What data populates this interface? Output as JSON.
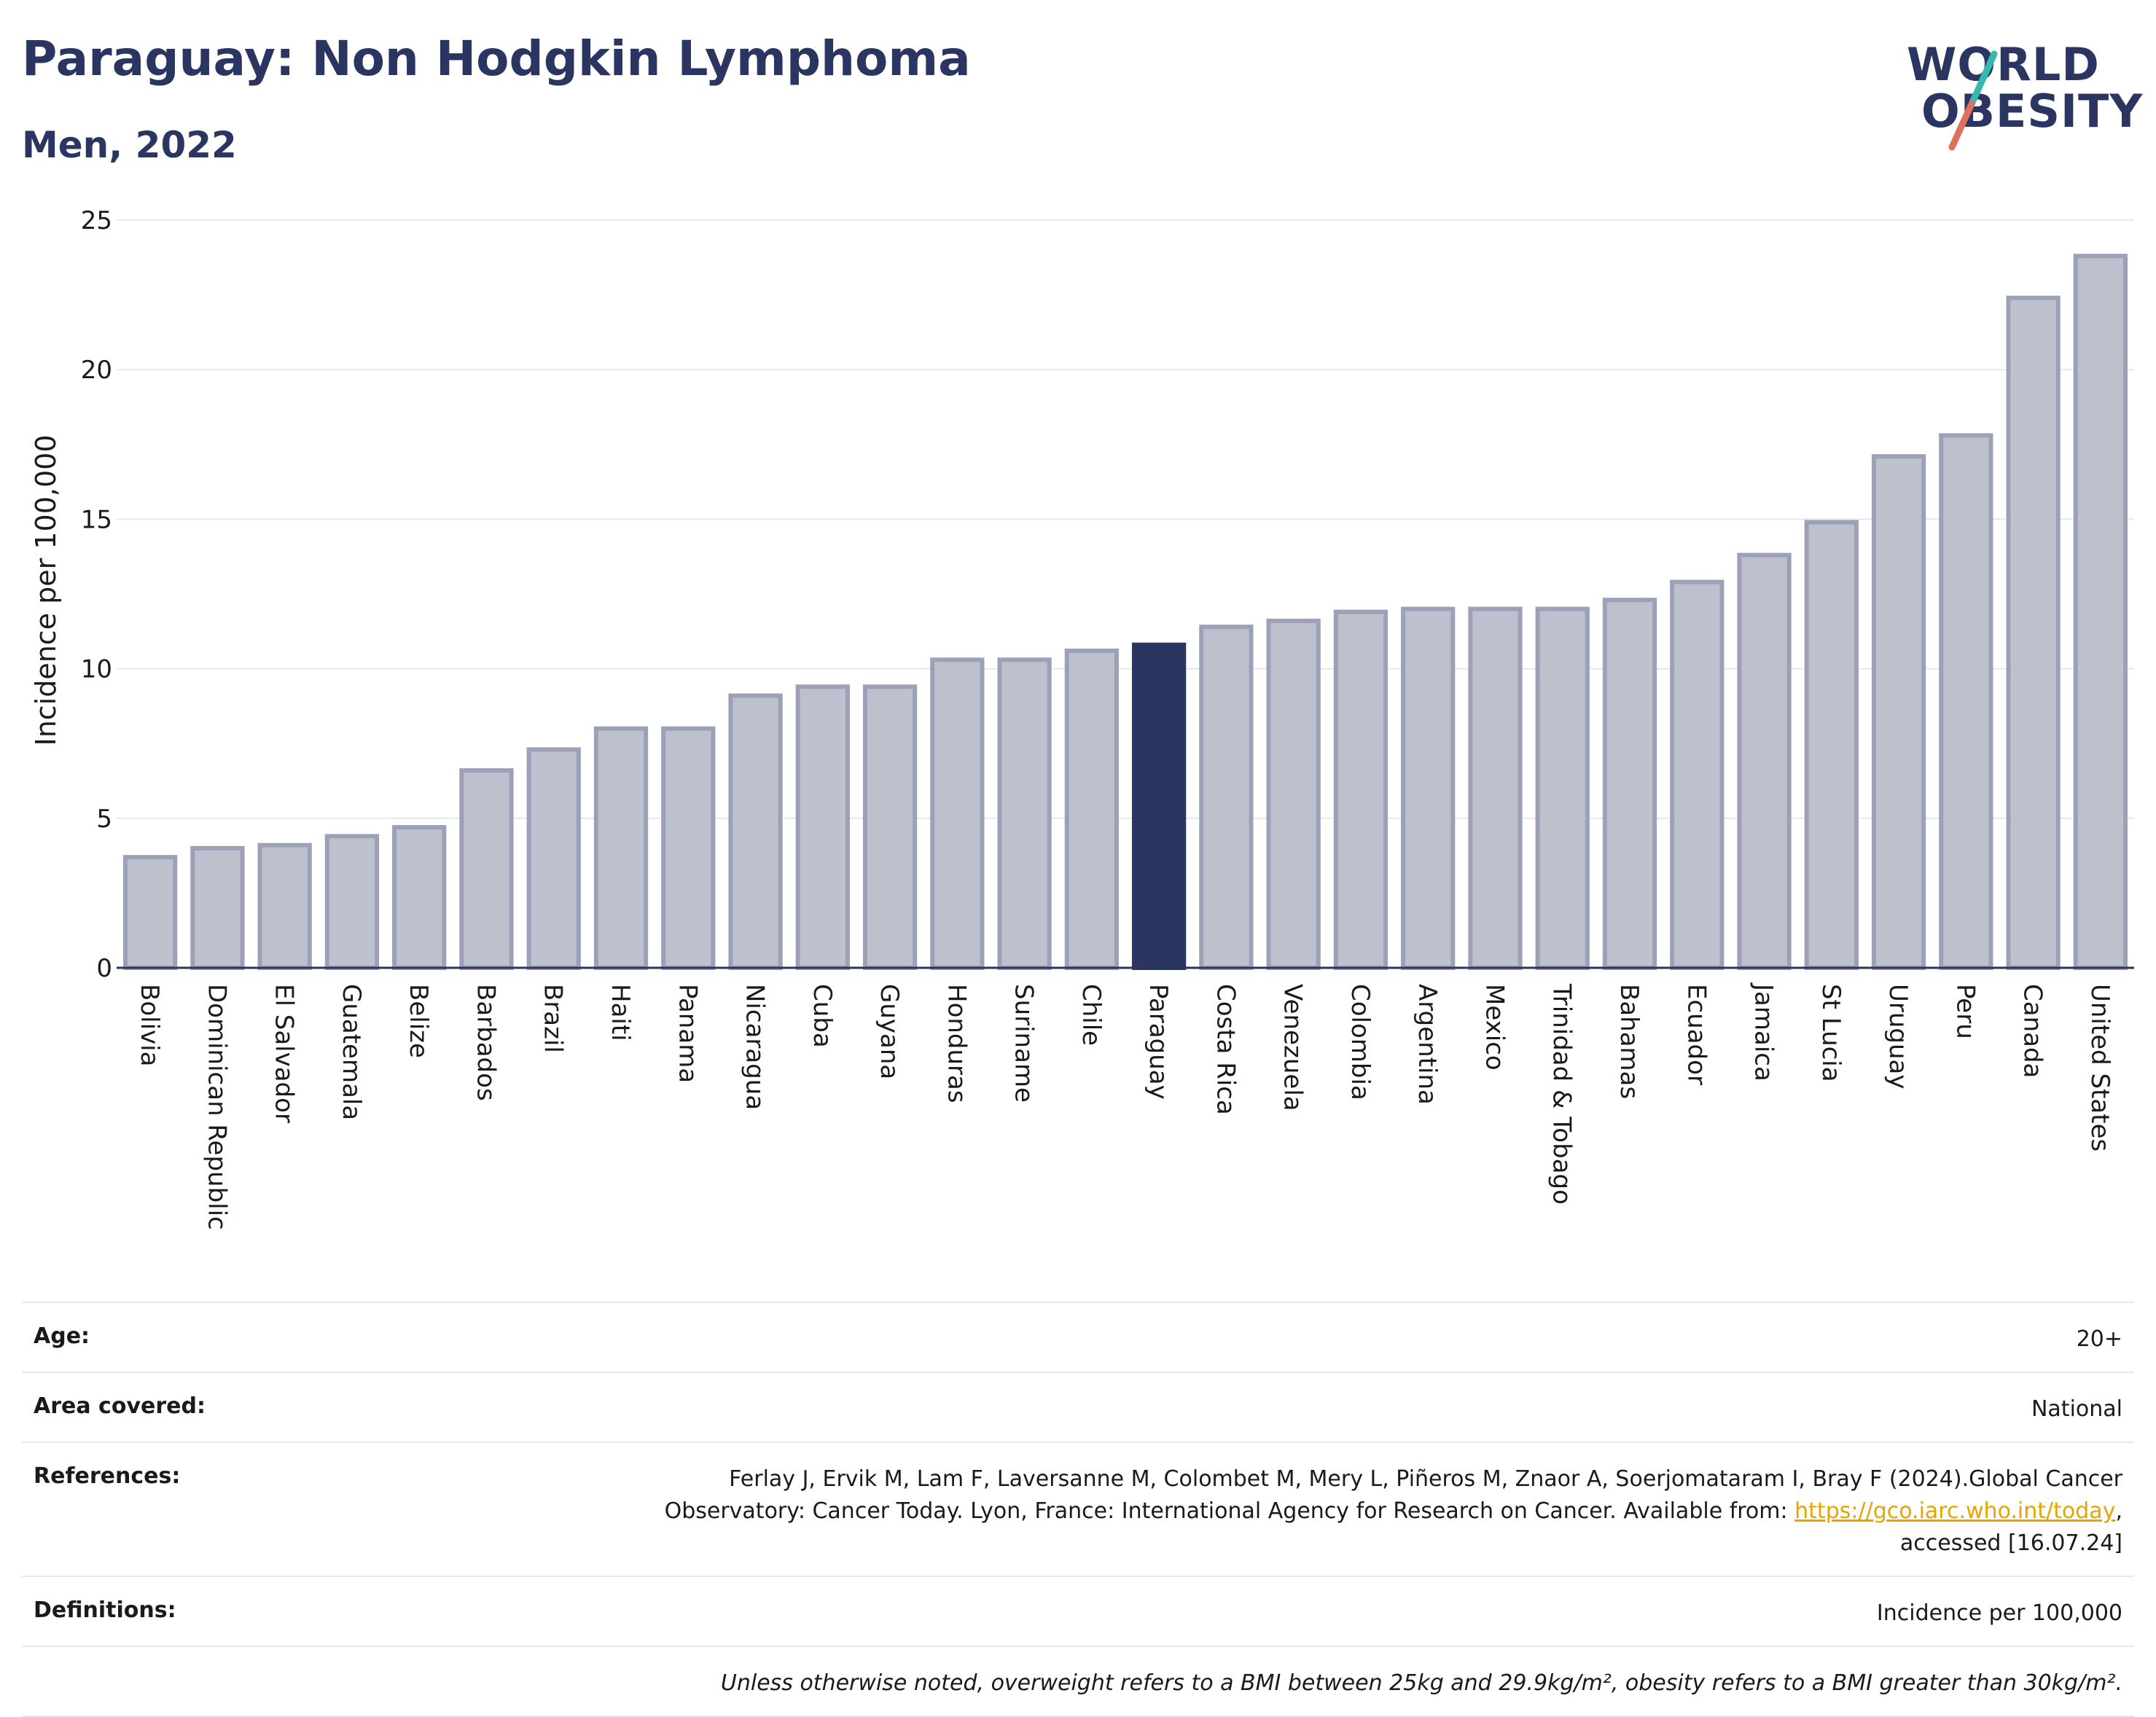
{
  "header": {
    "title": "Paraguay: Non Hodgkin Lymphoma",
    "subtitle": "Men, 2022",
    "logo_line1": "WORLD",
    "logo_line2": "OBESITY"
  },
  "colors": {
    "bar": "#bdc0cd",
    "bar_border": "#9ca1b7",
    "highlight": "#2b3562",
    "grid": "#e6e8f0",
    "logo_teal": "#39b8b0",
    "logo_coral": "#e0705c"
  },
  "chart_data": {
    "type": "bar",
    "ylabel": "Incidence per 100,000",
    "ylim": [
      0,
      25
    ],
    "yticks": [
      0,
      5,
      10,
      15,
      20,
      25
    ],
    "highlight": "Paraguay",
    "categories": [
      "Bolivia",
      "Dominican Republic",
      "El Salvador",
      "Guatemala",
      "Belize",
      "Barbados",
      "Brazil",
      "Haiti",
      "Panama",
      "Nicaragua",
      "Cuba",
      "Guyana",
      "Honduras",
      "Suriname",
      "Chile",
      "Paraguay",
      "Costa Rica",
      "Venezuela",
      "Colombia",
      "Argentina",
      "Mexico",
      "Trinidad & Tobago",
      "Bahamas",
      "Ecuador",
      "Jamaica",
      "St Lucia",
      "Uruguay",
      "Peru",
      "Canada",
      "United States"
    ],
    "values": [
      3.7,
      4.0,
      4.1,
      4.4,
      4.7,
      6.6,
      7.3,
      8.0,
      8.0,
      9.1,
      9.4,
      9.4,
      10.3,
      10.3,
      10.6,
      10.8,
      11.4,
      11.6,
      11.9,
      12.0,
      12.0,
      12.0,
      12.3,
      12.9,
      13.8,
      14.9,
      17.1,
      17.8,
      22.4,
      23.8
    ]
  },
  "meta": {
    "age_label": "Age:",
    "age_value": "20+",
    "area_label": "Area covered:",
    "area_value": "National",
    "references_label": "References:",
    "references_line1": "Ferlay J, Ervik M, Lam F, Laversanne M, Colombet M, Mery L, Piñeros M, Znaor A, Soerjomataram I, Bray F (2024).Global Cancer",
    "references_line2": "Observatory: Cancer Today. Lyon, France: International Agency for Research on Cancer. Available from:",
    "references_link": "https://gco.iarc.who.int/today",
    "references_line3": "accessed [16.07.24]",
    "definitions_label": "Definitions:",
    "definitions_value": "Incidence per 100,000",
    "note": "Unless otherwise noted, overweight refers to a BMI between 25kg and 29.9kg/m², obesity refers to a BMI greater than 30kg/m²."
  }
}
